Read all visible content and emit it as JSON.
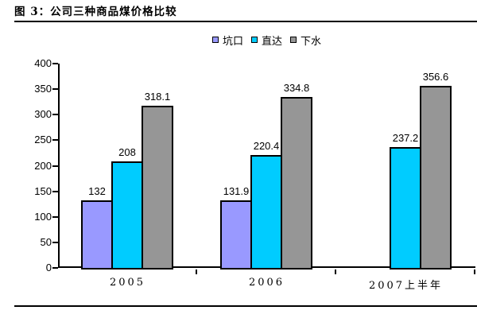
{
  "title": "图 3：公司三种商品煤价格比较",
  "colors": {
    "kengkou_purple": "#9999ff",
    "zhida_cyan": "#00ccff",
    "xiashui_gray": "#969696",
    "axis_black": "#000000",
    "background": "#ffffff"
  },
  "legend": {
    "position": "top-center",
    "marker": "bordered-square"
  },
  "chart_data": {
    "type": "bar",
    "title": "图 3：公司三种商品煤价格比较",
    "categories": [
      "2005",
      "2006",
      "2007上半年"
    ],
    "series": [
      {
        "name": "坑口",
        "color": "#9999ff",
        "values": [
          132,
          131.9,
          null
        ]
      },
      {
        "name": "直达",
        "color": "#00ccff",
        "values": [
          208,
          220.4,
          237.2
        ]
      },
      {
        "name": "下水",
        "color": "#969696",
        "values": [
          318.1,
          334.8,
          356.6
        ]
      }
    ],
    "xlabel": "",
    "ylabel": "",
    "ylim": [
      0,
      400
    ],
    "ytick_step": 50,
    "yticks": [
      0,
      50,
      100,
      150,
      200,
      250,
      300,
      350,
      400
    ],
    "grid": false,
    "legend_position": "top",
    "data_labels": true
  }
}
